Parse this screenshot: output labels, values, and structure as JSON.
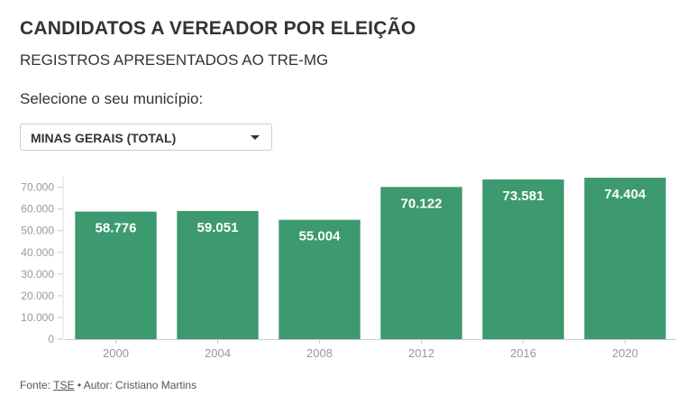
{
  "header": {
    "title": "CANDIDATOS A VEREADOR POR ELEIÇÃO",
    "subtitle": "REGISTROS APRESENTADOS AO TRE-MG"
  },
  "selector": {
    "label": "Selecione o seu município:",
    "selected": "MINAS GERAIS (TOTAL)"
  },
  "footer": {
    "source_prefix": "Fonte: ",
    "source_link": "TSE",
    "author": " • Autor: Cristiano Martins"
  },
  "colors": {
    "bar": "#3d9970",
    "bar_label": "#ffffff",
    "axis_text": "#999999",
    "grid": "#e6e6e6"
  },
  "chart_data": {
    "type": "bar",
    "categories": [
      "2000",
      "2004",
      "2008",
      "2012",
      "2016",
      "2020"
    ],
    "values": [
      58776,
      59051,
      55004,
      70122,
      73581,
      74404
    ],
    "value_labels": [
      "58.776",
      "59.051",
      "55.004",
      "70.122",
      "73.581",
      "74.404"
    ],
    "y_ticks": [
      0,
      10000,
      20000,
      30000,
      40000,
      50000,
      60000,
      70000
    ],
    "y_tick_labels": [
      "0",
      "10.000",
      "20.000",
      "30.000",
      "40.000",
      "50.000",
      "60.000",
      "70.000"
    ],
    "ylim": [
      0,
      74404
    ],
    "grid": false,
    "legend": "none"
  }
}
